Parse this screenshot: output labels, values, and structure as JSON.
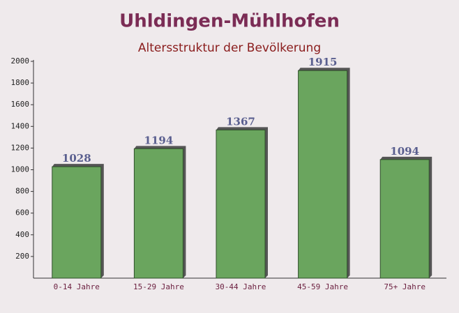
{
  "chart_data": {
    "type": "bar",
    "title": "Uhldingen-Mühlhofen",
    "subtitle": "Altersstruktur der Bevölkerung",
    "categories": [
      "0-14 Jahre",
      "15-29 Jahre",
      "30-44 Jahre",
      "45-59 Jahre",
      "75+ Jahre"
    ],
    "values": [
      1028,
      1194,
      1367,
      1915,
      1094
    ],
    "color": "#6aa55e",
    "ylim": [
      0,
      2000
    ],
    "yticks": [
      200,
      400,
      600,
      800,
      1000,
      1200,
      1400,
      1600,
      1800,
      2000
    ]
  }
}
